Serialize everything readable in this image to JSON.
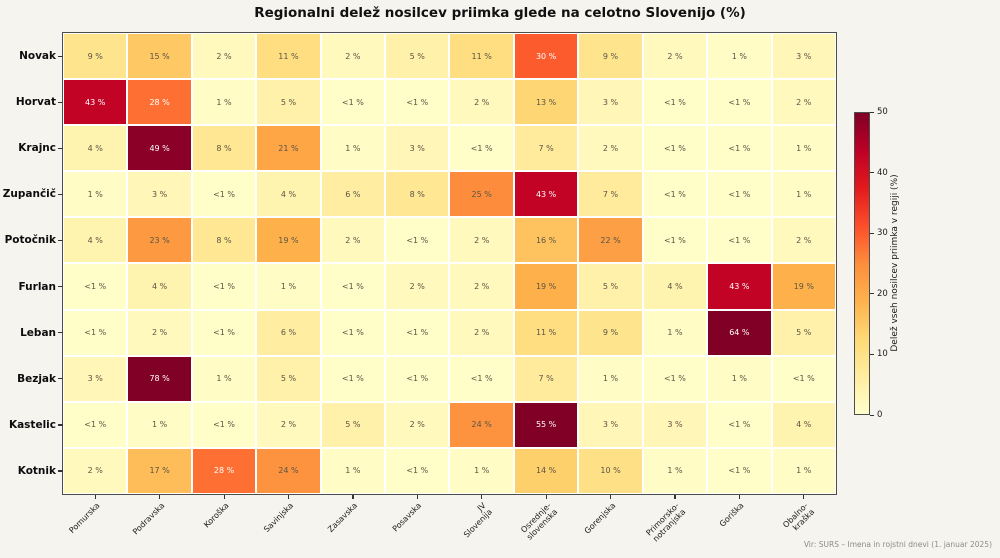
{
  "title": "Regionalni delež nosilcev priimka glede na celotno Slovenijo (%)",
  "source_note": "Vir: SURS – Imena in rojstni dnevi (1. januar 2025)",
  "chart_data": {
    "type": "heatmap",
    "title": "Regionalni delež nosilcev priimka glede na celotno Slovenijo (%)",
    "rows": [
      "Novak",
      "Horvat",
      "Krajnc",
      "Zupančič",
      "Potočnik",
      "Furlan",
      "Leban",
      "Bezjak",
      "Kastelic",
      "Kotnik"
    ],
    "columns": [
      "Pomurska",
      "Podravska",
      "Koroška",
      "Savinjska",
      "Zasavska",
      "Posavska",
      "JV Slovenija",
      "Osrednje-\nslovenska",
      "Gorenjska",
      "Primorsko-\nnotranjska",
      "Goriška",
      "Obalno-\nkraška"
    ],
    "cell_labels": [
      [
        "9 %",
        "15 %",
        "2 %",
        "11 %",
        "2 %",
        "5 %",
        "11 %",
        "30 %",
        "9 %",
        "2 %",
        "1 %",
        "3 %"
      ],
      [
        "43 %",
        "28 %",
        "1 %",
        "5 %",
        "<1 %",
        "<1 %",
        "2 %",
        "13 %",
        "3 %",
        "<1 %",
        "<1 %",
        "2 %"
      ],
      [
        "4 %",
        "49 %",
        "8 %",
        "21 %",
        "1 %",
        "3 %",
        "<1 %",
        "7 %",
        "2 %",
        "<1 %",
        "<1 %",
        "1 %"
      ],
      [
        "1 %",
        "3 %",
        "<1 %",
        "4 %",
        "6 %",
        "8 %",
        "25 %",
        "43 %",
        "7 %",
        "<1 %",
        "<1 %",
        "1 %"
      ],
      [
        "4 %",
        "23 %",
        "8 %",
        "19 %",
        "2 %",
        "<1 %",
        "2 %",
        "16 %",
        "22 %",
        "<1 %",
        "<1 %",
        "2 %"
      ],
      [
        "<1 %",
        "4 %",
        "<1 %",
        "1 %",
        "<1 %",
        "2 %",
        "2 %",
        "19 %",
        "5 %",
        "4 %",
        "43 %",
        "19 %"
      ],
      [
        "<1 %",
        "2 %",
        "<1 %",
        "6 %",
        "<1 %",
        "<1 %",
        "2 %",
        "11 %",
        "9 %",
        "1 %",
        "64 %",
        "5 %"
      ],
      [
        "3 %",
        "78 %",
        "1 %",
        "5 %",
        "<1 %",
        "<1 %",
        "<1 %",
        "7 %",
        "1 %",
        "<1 %",
        "1 %",
        "<1 %"
      ],
      [
        "<1 %",
        "1 %",
        "<1 %",
        "2 %",
        "5 %",
        "2 %",
        "24 %",
        "55 %",
        "3 %",
        "3 %",
        "<1 %",
        "4 %"
      ],
      [
        "2 %",
        "17 %",
        "28 %",
        "24 %",
        "1 %",
        "<1 %",
        "1 %",
        "14 %",
        "10 %",
        "1 %",
        "<1 %",
        "1 %"
      ]
    ],
    "values": [
      [
        9,
        15,
        2,
        11,
        2,
        5,
        11,
        30,
        9,
        2,
        1,
        3
      ],
      [
        43,
        28,
        1,
        5,
        0.5,
        0.5,
        2,
        13,
        3,
        0.5,
        0.5,
        2
      ],
      [
        4,
        49,
        8,
        21,
        1,
        3,
        0.5,
        7,
        2,
        0.5,
        0.5,
        1
      ],
      [
        1,
        3,
        0.5,
        4,
        6,
        8,
        25,
        43,
        7,
        0.5,
        0.5,
        1
      ],
      [
        4,
        23,
        8,
        19,
        2,
        0.5,
        2,
        16,
        22,
        0.5,
        0.5,
        2
      ],
      [
        0.5,
        4,
        0.5,
        1,
        0.5,
        2,
        2,
        19,
        5,
        4,
        43,
        19
      ],
      [
        0.5,
        2,
        0.5,
        6,
        0.5,
        0.5,
        2,
        11,
        9,
        1,
        64,
        5
      ],
      [
        3,
        78,
        1,
        5,
        0.5,
        0.5,
        0.5,
        7,
        1,
        0.5,
        1,
        0.5
      ],
      [
        0.5,
        1,
        0.5,
        2,
        5,
        2,
        24,
        55,
        3,
        3,
        0.5,
        4
      ],
      [
        2,
        17,
        28,
        24,
        1,
        0.5,
        1,
        14,
        10,
        1,
        0.5,
        1
      ]
    ],
    "colorbar": {
      "label": "Delež vseh nosilcev priimka v regiji (%)",
      "ticks": [
        0,
        10,
        20,
        30,
        40,
        50
      ],
      "vmin": 0,
      "vmax": 50,
      "colormap": "YlOrRd"
    },
    "colors": {
      "background": "#f6f4ef",
      "cmap_low": "#ffffcc",
      "cmap_high": "#800026",
      "frame": "#4d4d4d",
      "annotation_dark": "#5a5444",
      "annotation_light": "#ffffff"
    }
  }
}
